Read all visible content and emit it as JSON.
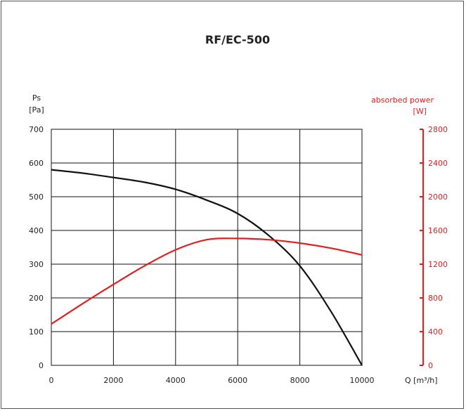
{
  "chart_data": {
    "type": "line",
    "title": "RF/EC-500",
    "ylabel_left": [
      "Ps",
      "[Pa]"
    ],
    "ylabel_right": [
      "absorbed power",
      "[W]"
    ],
    "xlabel": "Q [m³/h]",
    "xlim": [
      0,
      10000
    ],
    "ylim_left": [
      0,
      700
    ],
    "ylim_right": [
      0,
      2800
    ],
    "x_ticks": [
      "0",
      "2000",
      "4000",
      "6000",
      "8000",
      "10000"
    ],
    "y_ticks_left": [
      "0",
      "100",
      "200",
      "300",
      "400",
      "500",
      "600",
      "700"
    ],
    "y_ticks_right": [
      "0",
      "400",
      "800",
      "1200",
      "1600",
      "2000",
      "2400",
      "2800"
    ],
    "grid": true,
    "colors": {
      "pressure": "#111111",
      "power": "#e02020",
      "frame": "#2f5d8a"
    },
    "series": [
      {
        "key": "pressure",
        "axis": "left",
        "x": [
          0,
          1000,
          2000,
          3000,
          4000,
          5000,
          6000,
          7000,
          8000,
          9000,
          10000
        ],
        "y": [
          580,
          570,
          557,
          543,
          522,
          490,
          450,
          385,
          295,
          160,
          0
        ]
      },
      {
        "key": "power",
        "axis": "right",
        "x": [
          0,
          1000,
          2000,
          3000,
          4000,
          5000,
          6000,
          7000,
          8000,
          9000,
          10000
        ],
        "y": [
          490,
          730,
          960,
          1180,
          1370,
          1490,
          1505,
          1490,
          1450,
          1390,
          1310
        ]
      }
    ]
  }
}
